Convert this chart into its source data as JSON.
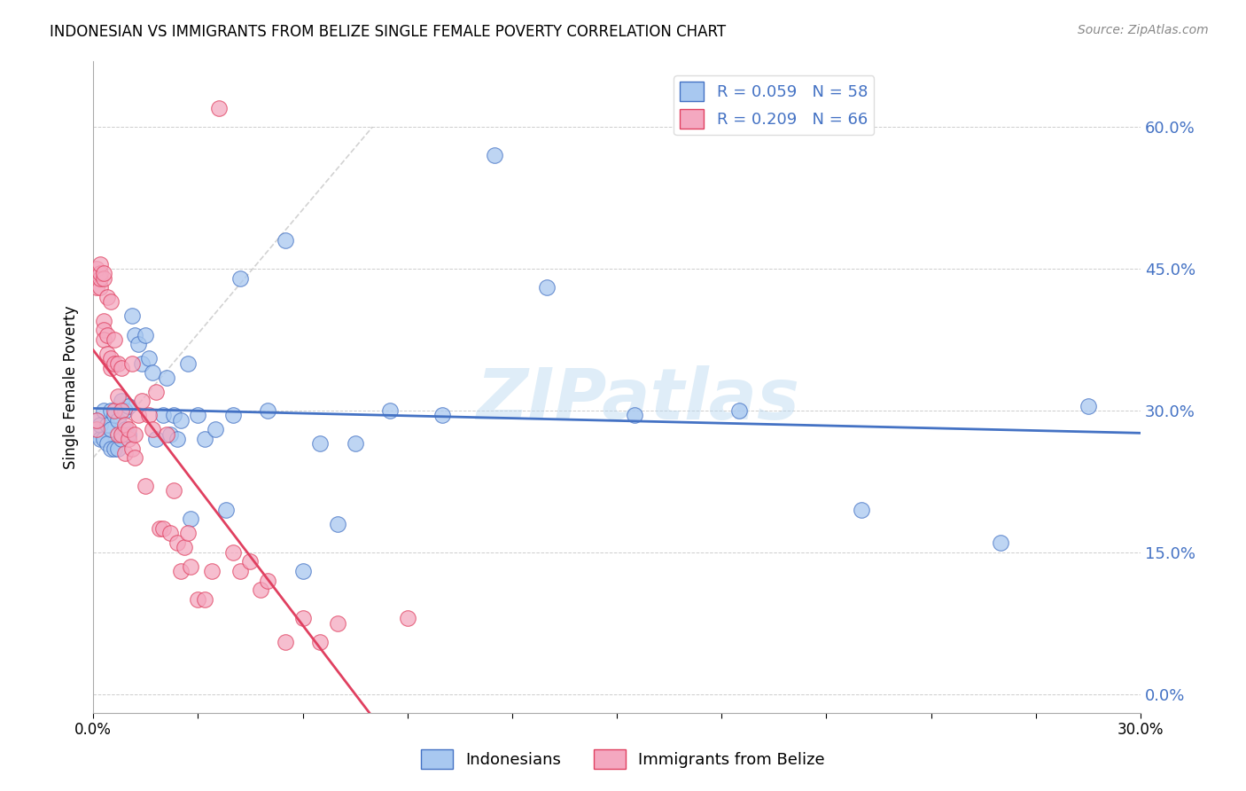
{
  "title": "INDONESIAN VS IMMIGRANTS FROM BELIZE SINGLE FEMALE POVERTY CORRELATION CHART",
  "source": "Source: ZipAtlas.com",
  "ylabel": "Single Female Poverty",
  "legend_label_1": "Indonesians",
  "legend_label_2": "Immigrants from Belize",
  "r1": 0.059,
  "n1": 58,
  "r2": 0.209,
  "n2": 66,
  "xmin": 0.0,
  "xmax": 0.3,
  "ymin": -0.02,
  "ymax": 0.67,
  "yticks": [
    0.0,
    0.15,
    0.3,
    0.45,
    0.6
  ],
  "xticks": [
    0.0,
    0.03,
    0.06,
    0.09,
    0.12,
    0.15,
    0.18,
    0.21,
    0.24,
    0.27,
    0.3
  ],
  "xtick_labels": [
    "0.0%",
    "",
    "",
    "",
    "",
    "",
    "",
    "",
    "",
    "",
    "30.0%"
  ],
  "color_blue": "#A8C8F0",
  "color_pink": "#F4A8C0",
  "line_color_blue": "#4472C4",
  "line_color_pink": "#E04060",
  "watermark": "ZIPatlas",
  "indonesians_x": [
    0.001,
    0.001,
    0.002,
    0.002,
    0.003,
    0.003,
    0.004,
    0.004,
    0.005,
    0.005,
    0.005,
    0.006,
    0.006,
    0.007,
    0.007,
    0.008,
    0.008,
    0.009,
    0.009,
    0.01,
    0.01,
    0.011,
    0.012,
    0.013,
    0.014,
    0.015,
    0.016,
    0.017,
    0.018,
    0.02,
    0.021,
    0.022,
    0.023,
    0.024,
    0.025,
    0.027,
    0.028,
    0.03,
    0.032,
    0.035,
    0.038,
    0.04,
    0.042,
    0.05,
    0.055,
    0.06,
    0.065,
    0.07,
    0.075,
    0.085,
    0.1,
    0.115,
    0.13,
    0.155,
    0.185,
    0.22,
    0.26,
    0.285
  ],
  "indonesians_y": [
    0.275,
    0.29,
    0.27,
    0.285,
    0.27,
    0.3,
    0.285,
    0.265,
    0.28,
    0.26,
    0.3,
    0.26,
    0.295,
    0.26,
    0.29,
    0.27,
    0.31,
    0.28,
    0.3,
    0.275,
    0.305,
    0.4,
    0.38,
    0.37,
    0.35,
    0.38,
    0.355,
    0.34,
    0.27,
    0.295,
    0.335,
    0.275,
    0.295,
    0.27,
    0.29,
    0.35,
    0.185,
    0.295,
    0.27,
    0.28,
    0.195,
    0.295,
    0.44,
    0.3,
    0.48,
    0.13,
    0.265,
    0.18,
    0.265,
    0.3,
    0.295,
    0.57,
    0.43,
    0.295,
    0.3,
    0.195,
    0.16,
    0.305
  ],
  "belize_x": [
    0.001,
    0.001,
    0.001,
    0.001,
    0.002,
    0.002,
    0.002,
    0.002,
    0.003,
    0.003,
    0.003,
    0.003,
    0.003,
    0.004,
    0.004,
    0.004,
    0.005,
    0.005,
    0.005,
    0.006,
    0.006,
    0.006,
    0.007,
    0.007,
    0.007,
    0.008,
    0.008,
    0.008,
    0.009,
    0.009,
    0.01,
    0.01,
    0.011,
    0.011,
    0.012,
    0.012,
    0.013,
    0.014,
    0.015,
    0.016,
    0.017,
    0.018,
    0.019,
    0.02,
    0.021,
    0.022,
    0.023,
    0.024,
    0.025,
    0.026,
    0.027,
    0.028,
    0.03,
    0.032,
    0.034,
    0.036,
    0.04,
    0.042,
    0.045,
    0.048,
    0.05,
    0.055,
    0.06,
    0.065,
    0.07,
    0.09
  ],
  "belize_y": [
    0.28,
    0.29,
    0.43,
    0.45,
    0.43,
    0.44,
    0.445,
    0.455,
    0.395,
    0.44,
    0.445,
    0.385,
    0.375,
    0.38,
    0.36,
    0.42,
    0.345,
    0.415,
    0.355,
    0.3,
    0.35,
    0.375,
    0.275,
    0.315,
    0.35,
    0.275,
    0.3,
    0.345,
    0.255,
    0.285,
    0.27,
    0.28,
    0.26,
    0.35,
    0.25,
    0.275,
    0.295,
    0.31,
    0.22,
    0.295,
    0.28,
    0.32,
    0.175,
    0.175,
    0.275,
    0.17,
    0.215,
    0.16,
    0.13,
    0.155,
    0.17,
    0.135,
    0.1,
    0.1,
    0.13,
    0.62,
    0.15,
    0.13,
    0.14,
    0.11,
    0.12,
    0.055,
    0.08,
    0.055,
    0.075,
    0.08
  ],
  "diag_line": [
    [
      0.0,
      0.08
    ],
    [
      0.25,
      0.6
    ]
  ]
}
